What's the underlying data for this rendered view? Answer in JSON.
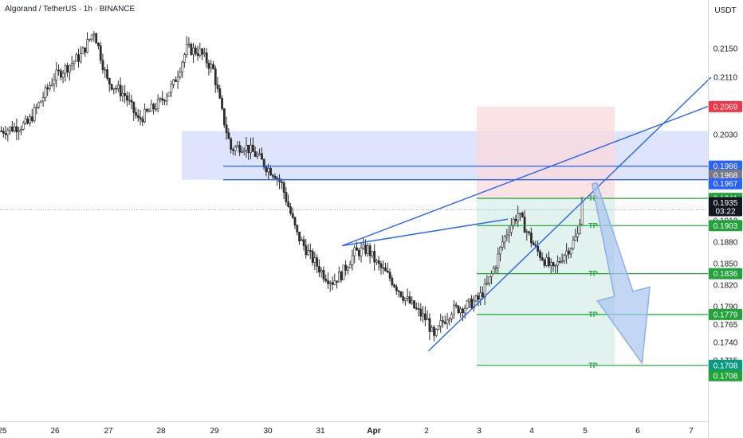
{
  "header": {
    "symbol": "Algorand / TetherUS · 1h · BINANCE"
  },
  "price_axis": {
    "currency": "USDT"
  },
  "colors": {
    "up": "#2c2c2c",
    "down": "#2c2c2c",
    "trendline": "#2962ff",
    "supply_zone": "#d9e1fb",
    "stop_zone": "#f9d9dc",
    "target_zone": "#dff1ec",
    "tp_line": "#22a33a",
    "tag_red": "#f23645",
    "tag_blue": "#2962ff",
    "tag_green": "#22ab94",
    "tag_dark": "#131722",
    "tag_teal": "#089981"
  },
  "chart_data": {
    "type": "candlestick",
    "title": "Algorand / TetherUS · 1h · BINANCE",
    "yaxis": {
      "label": "USDT",
      "ticks": [
        0.215,
        0.211,
        0.207,
        0.203,
        0.191,
        0.188,
        0.185,
        0.182,
        0.179,
        0.1765,
        0.174,
        0.1715
      ]
    },
    "xaxis": {
      "ticks": [
        "25",
        "26",
        "27",
        "28",
        "29",
        "30",
        "31",
        "Apr",
        "2",
        "3",
        "4",
        "5",
        "6",
        "7"
      ]
    },
    "path_hourly_close_approx": [
      [
        0,
        0.2035
      ],
      [
        12,
        0.2045
      ],
      [
        24,
        0.211
      ],
      [
        36,
        0.214
      ],
      [
        42,
        0.2175
      ],
      [
        48,
        0.2105
      ],
      [
        56,
        0.2085
      ],
      [
        62,
        0.205
      ],
      [
        72,
        0.2075
      ],
      [
        78,
        0.21
      ],
      [
        84,
        0.215
      ],
      [
        90,
        0.2145
      ],
      [
        96,
        0.212
      ],
      [
        100,
        0.206
      ],
      [
        104,
        0.201
      ],
      [
        110,
        0.2015
      ],
      [
        116,
        0.2
      ],
      [
        120,
        0.1985
      ],
      [
        124,
        0.1975
      ],
      [
        127,
        0.196
      ],
      [
        130,
        0.193
      ],
      [
        134,
        0.189
      ],
      [
        140,
        0.186
      ],
      [
        146,
        0.1835
      ],
      [
        150,
        0.1825
      ],
      [
        154,
        0.1835
      ],
      [
        160,
        0.1865
      ],
      [
        166,
        0.187
      ],
      [
        170,
        0.185
      ],
      [
        176,
        0.183
      ],
      [
        182,
        0.1805
      ],
      [
        188,
        0.1785
      ],
      [
        193,
        0.177
      ],
      [
        196,
        0.1745
      ],
      [
        199,
        0.1765
      ],
      [
        204,
        0.1785
      ],
      [
        210,
        0.179
      ],
      [
        216,
        0.18
      ],
      [
        220,
        0.182
      ],
      [
        224,
        0.185
      ],
      [
        227,
        0.188
      ],
      [
        230,
        0.19
      ],
      [
        234,
        0.192
      ],
      [
        238,
        0.1895
      ],
      [
        242,
        0.187
      ],
      [
        246,
        0.1855
      ],
      [
        250,
        0.184
      ],
      [
        254,
        0.186
      ],
      [
        258,
        0.1875
      ],
      [
        261,
        0.189
      ],
      [
        263,
        0.1935
      ]
    ],
    "last_price": "0.1935",
    "countdown": "03:22",
    "price_labels": [
      "0.2069",
      "0.1986",
      "0.1968",
      "0.1967",
      "0.1941",
      "0.1903",
      "0.1836",
      "0.1779",
      "0.1708",
      "0.1708"
    ],
    "zones": [
      {
        "type": "supply",
        "from": 0.1967,
        "to": 0.2035
      },
      {
        "type": "stop",
        "from": 0.1941,
        "to": 0.2069
      },
      {
        "type": "target",
        "from": 0.1708,
        "to": 0.1941
      }
    ],
    "horizontal_lines": [
      0.1986,
      0.1967
    ],
    "take_profits": [
      {
        "label": "TP",
        "price": 0.1941
      },
      {
        "label": "TP",
        "price": 0.1903
      },
      {
        "label": "TP",
        "price": 0.1836
      },
      {
        "label": "TP",
        "price": 0.1779
      },
      {
        "label": "TP",
        "price": 0.1708
      }
    ],
    "trendlines": [
      {
        "from": [
          155,
          0.1875
        ],
        "to": [
          322,
          0.2071
        ]
      },
      {
        "from": [
          194,
          0.1728
        ],
        "to": [
          322,
          0.211
        ]
      },
      {
        "from": [
          155,
          0.1875
        ],
        "to": [
          230,
          0.1912
        ]
      }
    ],
    "arrow": {
      "from": [
        267,
        0.1962
      ],
      "to": [
        290,
        0.1711
      ]
    }
  }
}
